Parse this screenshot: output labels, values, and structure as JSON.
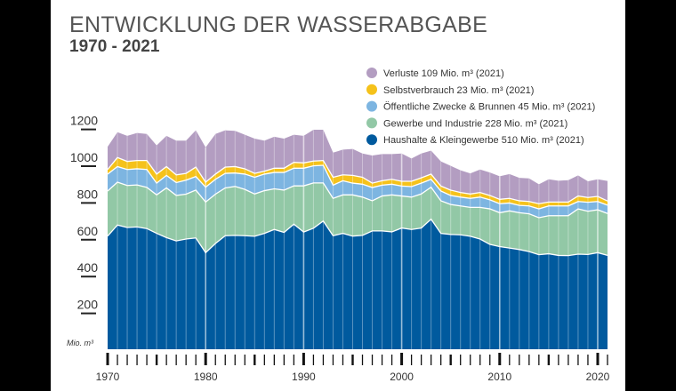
{
  "header": {
    "title": "ENTWICKLUNG DER WASSERABGABE",
    "subtitle": "1970 - 2021"
  },
  "chart_data": {
    "type": "area",
    "stacked": true,
    "title": "ENTWICKLUNG DER WASSERABGABE",
    "subtitle": "1970 - 2021",
    "ylabel": "Mio. m³",
    "ylim": [
      0,
      1200
    ],
    "yticks": [
      "200",
      "400",
      "600",
      "800",
      "1000",
      "1200"
    ],
    "xticks": [
      "1970",
      "1980",
      "1990",
      "2000",
      "2010",
      "2020"
    ],
    "xlim": [
      1970,
      2021
    ],
    "grid": false,
    "legend_placement": "top-right",
    "x": [
      1970,
      1971,
      1972,
      1973,
      1974,
      1975,
      1976,
      1977,
      1978,
      1979,
      1980,
      1981,
      1982,
      1983,
      1984,
      1985,
      1986,
      1987,
      1988,
      1989,
      1990,
      1991,
      1992,
      1993,
      1994,
      1995,
      1996,
      1997,
      1998,
      1999,
      2000,
      2001,
      2002,
      2003,
      2004,
      2005,
      2006,
      2007,
      2008,
      2009,
      2010,
      2011,
      2012,
      2013,
      2014,
      2015,
      2016,
      2017,
      2018,
      2019,
      2020,
      2021
    ],
    "series": [
      {
        "name": "Haushalte & Kleingewerbe 510 Mio. m³ (2021)",
        "color": "#005a9e",
        "values": [
          615,
          675,
          662,
          665,
          656,
          630,
          607,
          589,
          599,
          605,
          525,
          575,
          617,
          619,
          617,
          614,
          630,
          651,
          635,
          680,
          637,
          658,
          697,
          617,
          630,
          615,
          619,
          643,
          643,
          638,
          659,
          651,
          659,
          707,
          630,
          624,
          622,
          614,
          599,
          570,
          558,
          550,
          542,
          531,
          514,
          519,
          510,
          509,
          517,
          515,
          525,
          510
        ]
      },
      {
        "name": "Gewerbe und Industrie 228 Mio. m³ (2021)",
        "color": "#92c8a6",
        "values": [
          245,
          233,
          228,
          228,
          224,
          209,
          270,
          247,
          244,
          260,
          275,
          268,
          260,
          266,
          252,
          230,
          232,
          221,
          230,
          208,
          251,
          246,
          207,
          203,
          209,
          224,
          208,
          164,
          190,
          201,
          174,
          176,
          185,
          174,
          177,
          163,
          157,
          157,
          172,
          193,
          184,
          202,
          200,
          205,
          201,
          207,
          216,
          217,
          246,
          235,
          233,
          228
        ]
      },
      {
        "name": "Öffentliche Zwecke & Brunnen 45 Mio. m³ (2021)",
        "color": "#7db5e1",
        "values": [
          92,
          85,
          87,
          88,
          97,
          64,
          68,
          70,
          76,
          74,
          81,
          81,
          79,
          73,
          83,
          91,
          90,
          89,
          96,
          96,
          96,
          93,
          96,
          72,
          77,
          64,
          70,
          72,
          59,
          58,
          54,
          57,
          59,
          43,
          53,
          49,
          48,
          49,
          56,
          49,
          49,
          43,
          40,
          43,
          48,
          53,
          53,
          53,
          40,
          49,
          45,
          45
        ]
      },
      {
        "name": "Selbstverbrauch 23 Mio. m³ (2021)",
        "color": "#f5c21b",
        "values": [
          25,
          49,
          44,
          45,
          49,
          49,
          48,
          42,
          37,
          51,
          27,
          28,
          34,
          35,
          29,
          21,
          16,
          23,
          23,
          32,
          29,
          26,
          26,
          43,
          32,
          42,
          38,
          24,
          24,
          27,
          26,
          29,
          29,
          28,
          27,
          29,
          25,
          24,
          25,
          24,
          24,
          25,
          25,
          24,
          28,
          21,
          21,
          21,
          30,
          26,
          28,
          23
        ]
      },
      {
        "name": "Verluste 109 Mio. m³ (2021)",
        "color": "#b39dc1",
        "values": [
          124,
          138,
          139,
          150,
          144,
          156,
          167,
          186,
          178,
          200,
          189,
          218,
          200,
          194,
          185,
          189,
          166,
          171,
          161,
          150,
          147,
          170,
          167,
          134,
          137,
          144,
          129,
          150,
          145,
          137,
          151,
          124,
          132,
          128,
          134,
          132,
          121,
          112,
          125,
          125,
          125,
          132,
          125,
          126,
          106,
          124,
          116,
          119,
          112,
          88,
          93,
          109
        ]
      }
    ]
  }
}
